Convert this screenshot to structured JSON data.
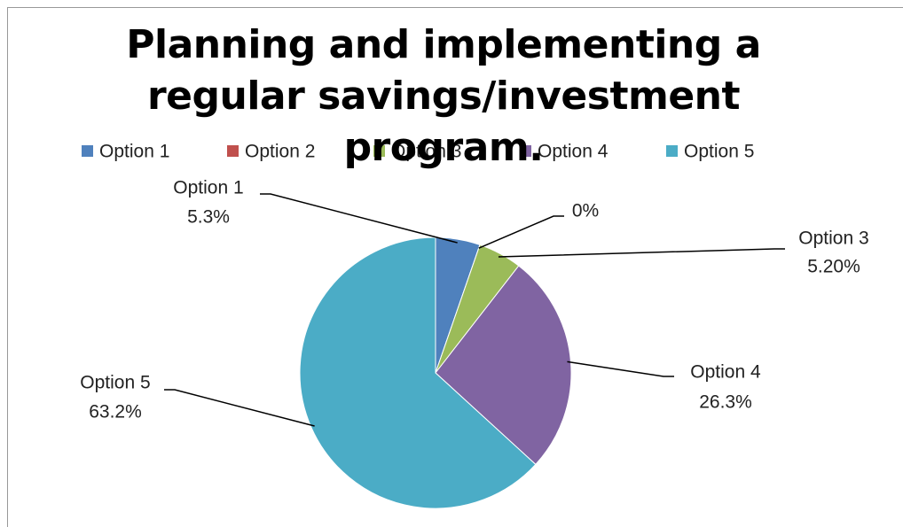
{
  "chart_data": {
    "type": "pie",
    "title": "Planning and implementing a regular savings/investment  program.",
    "categories": [
      "Option 1",
      "Option 2",
      "Option 3",
      "Option 4",
      "Option 5"
    ],
    "values": [
      5.3,
      0,
      5.2,
      26.3,
      63.2
    ],
    "value_labels": [
      "5.3%",
      "0%",
      "5.20%",
      "26.3%",
      "63.2%"
    ],
    "colors": [
      "#4f81bd",
      "#c0504d",
      "#9bbb59",
      "#8064a2",
      "#4bacc6"
    ],
    "legend": "top"
  }
}
